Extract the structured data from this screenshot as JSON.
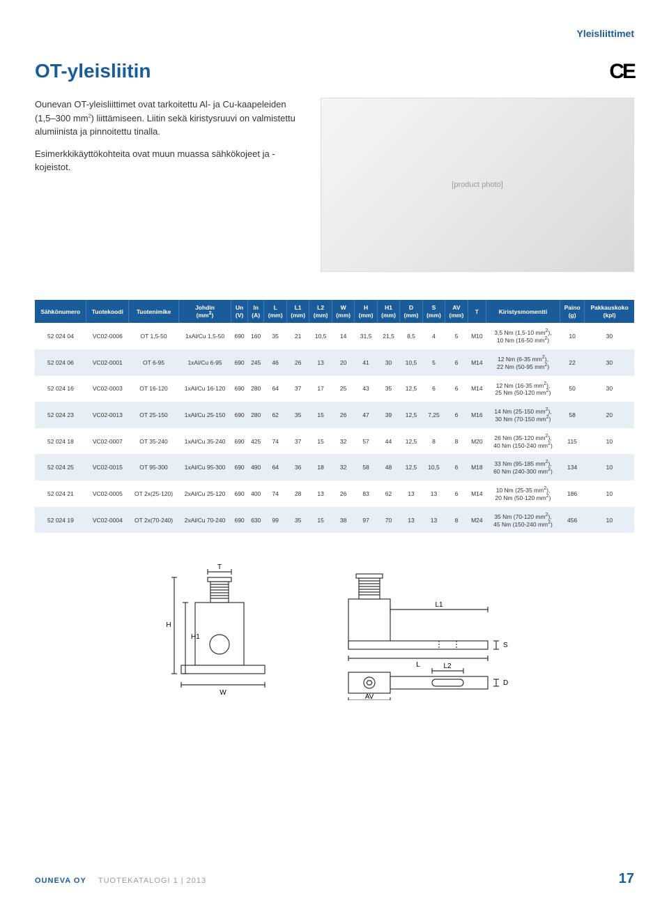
{
  "category": "Yleisliittimet",
  "title": "OT-yleisliitin",
  "ce_mark": "CE",
  "intro": {
    "p1_a": "Ounevan OT-yleisliittimet ovat tarkoitettu Al- ja Cu-kaapeleiden (1,5–300 mm",
    "p1_b": ") liittämiseen. Liitin sekä kiristysruuvi on valmistettu alumiinista ja pinnoitettu tinalla.",
    "p2": "Esimerkkikäyttökohteita ovat muun muassa sähkökojeet ja -kojeistot."
  },
  "photo_alt": "[product photo]",
  "table": {
    "columns": [
      "Sähkönumero",
      "Tuotekoodi",
      "Tuotenimike",
      "Johdin (mm²)",
      "Un (V)",
      "In (A)",
      "L (mm)",
      "L1 (mm)",
      "L2 (mm)",
      "W (mm)",
      "H (mm)",
      "H1 (mm)",
      "D (mm)",
      "S (mm)",
      "AV (mm)",
      "T",
      "Kiristysmomentti",
      "Paino (g)",
      "Pakkauskoko (kpl)"
    ],
    "rows": [
      [
        "52 024 04",
        "VC02-0006",
        "OT 1,5-50",
        "1xAl/Cu 1,5-50",
        "690",
        "160",
        "35",
        "21",
        "10,5",
        "14",
        "31,5",
        "21,5",
        "8,5",
        "4",
        "5",
        "M10",
        "3,5 Nm (1,5-10 mm²),\n10 Nm (16-50 mm²)",
        "10",
        "30"
      ],
      [
        "52 024 06",
        "VC02-0001",
        "OT 6-95",
        "1xAl/Cu 6-95",
        "690",
        "245",
        "46",
        "26",
        "13",
        "20",
        "41",
        "30",
        "10,5",
        "5",
        "6",
        "M14",
        "12 Nm (6-35 mm²),\n22 Nm (50-95 mm²)",
        "22",
        "30"
      ],
      [
        "52 024 16",
        "VC02-0003",
        "OT 16-120",
        "1xAl/Cu 16-120",
        "690",
        "280",
        "64",
        "37",
        "17",
        "25",
        "43",
        "35",
        "12,5",
        "6",
        "6",
        "M14",
        "12 Nm (16-35 mm²),\n25 Nm (50-120 mm²)",
        "50",
        "30"
      ],
      [
        "52 024 23",
        "VC02-0013",
        "OT 25-150",
        "1xAl/Cu 25-150",
        "690",
        "280",
        "62",
        "35",
        "15",
        "26",
        "47",
        "39",
        "12,5",
        "7,25",
        "6",
        "M16",
        "14 Nm (25-150 mm²),\n30 Nm (70-150 mm²)",
        "58",
        "20"
      ],
      [
        "52 024 18",
        "VC02-0007",
        "OT 35-240",
        "1xAl/Cu 35-240",
        "690",
        "425",
        "74",
        "37",
        "15",
        "32",
        "57",
        "44",
        "12,5",
        "8",
        "8",
        "M20",
        "26 Nm (35-120 mm²),\n40 Nm (150-240 mm²)",
        "115",
        "10"
      ],
      [
        "52 024 25",
        "VC02-0015",
        "OT 95-300",
        "1xAl/Cu 95-300",
        "690",
        "490",
        "64",
        "36",
        "18",
        "32",
        "58",
        "48",
        "12,5",
        "10,5",
        "6",
        "M18",
        "33 Nm (95-185 mm²),\n60 Nm (240-300 mm²)",
        "134",
        "10"
      ],
      [
        "52 024 21",
        "VC02-0005",
        "OT 2x(25-120)",
        "2xAl/Cu 25-120",
        "690",
        "400",
        "74",
        "28",
        "13",
        "26",
        "83",
        "62",
        "13",
        "13",
        "6",
        "M14",
        "10 Nm (25-35 mm²),\n20 Nm (50-120 mm²)",
        "186",
        "10"
      ],
      [
        "52 024 19",
        "VC02-0004",
        "OT 2x(70-240)",
        "2xAl/Cu 70-240",
        "690",
        "630",
        "99",
        "35",
        "15",
        "38",
        "97",
        "70",
        "13",
        "13",
        "8",
        "M24",
        "35 Nm (70-120 mm²),\n45 Nm (150-240 mm²)",
        "456",
        "10"
      ]
    ]
  },
  "diagram_labels": {
    "T": "T",
    "H": "H",
    "H1": "H1",
    "W": "W",
    "L1": "L1",
    "S": "S",
    "L": "L",
    "AV": "AV",
    "L2": "L2",
    "D": "D"
  },
  "footer": {
    "company": "OUNEVA OY",
    "catalog": "TUOTEKATALOGI 1 | 2013",
    "page": "17"
  },
  "colors": {
    "brand_blue": "#1a5b9a",
    "row_alt": "#e8eef5",
    "text": "#333333",
    "muted": "#999999"
  }
}
